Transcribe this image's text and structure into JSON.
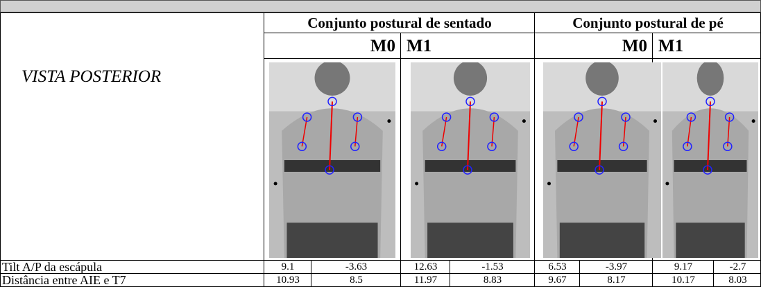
{
  "header": {
    "row_label": "VISTA POSTERIOR",
    "groups": [
      "Conjunto postural de sentado",
      "Conjunto postural de pé"
    ],
    "moments": [
      "M0",
      "M1",
      "M0",
      "M1"
    ]
  },
  "rows": [
    {
      "label": "Tilt A/P da escápula",
      "values": [
        "9.1",
        "-3.63",
        "12.63",
        "-1.53",
        "6.53",
        "-3.97",
        "9.17",
        "-2.7"
      ]
    },
    {
      "label": "Distância entre AIE e T7",
      "values": [
        "10.93",
        "8.5",
        "11.97",
        "8.83",
        "9.67",
        "8.17",
        "10.17",
        "8.03"
      ]
    }
  ]
}
